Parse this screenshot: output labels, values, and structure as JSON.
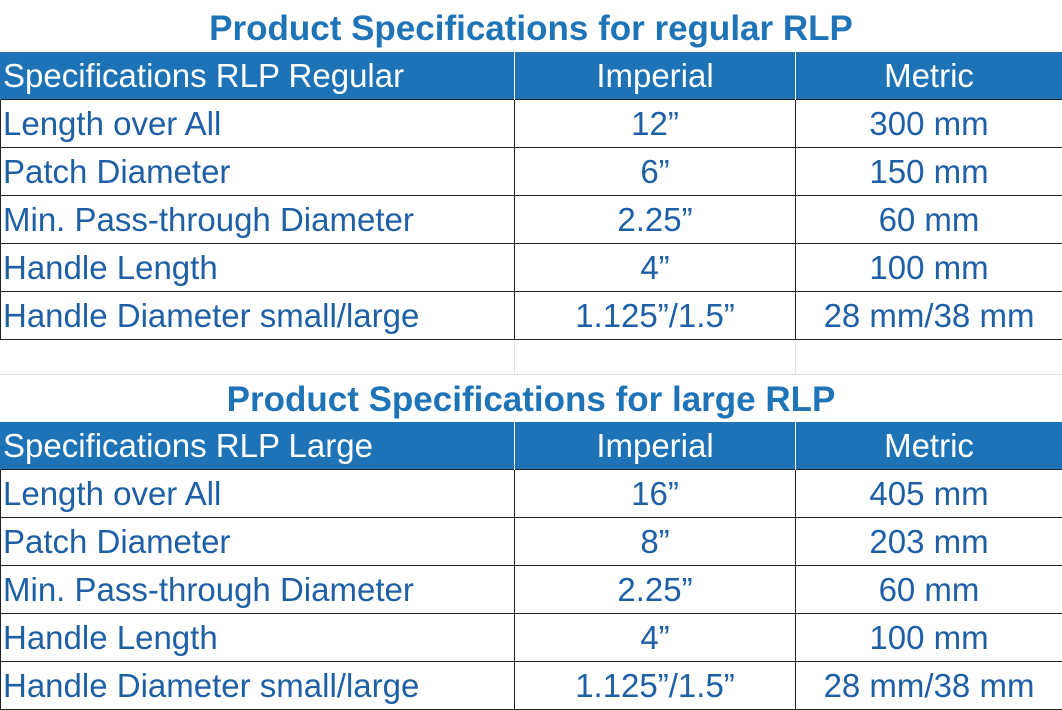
{
  "regular": {
    "title": "Product Specifications for regular RLP",
    "headers": [
      "Specifications RLP Regular",
      "Imperial",
      "Metric"
    ],
    "rows": [
      [
        "Length over All",
        "12”",
        "300 mm"
      ],
      [
        "Patch Diameter",
        "6”",
        "150 mm"
      ],
      [
        "Min. Pass-through Diameter",
        "2.25”",
        "60 mm"
      ],
      [
        "Handle Length",
        "4”",
        "100 mm"
      ],
      [
        "Handle Diameter small/large",
        "1.125”/1.5”",
        "28 mm/38 mm"
      ]
    ]
  },
  "large": {
    "title": "Product Specifications for large RLP",
    "headers": [
      "Specifications RLP Large",
      "Imperial",
      "Metric"
    ],
    "rows": [
      [
        "Length over All",
        "16”",
        "405 mm"
      ],
      [
        "Patch Diameter",
        "8”",
        "203 mm"
      ],
      [
        "Min. Pass-through Diameter",
        "2.25”",
        "60 mm"
      ],
      [
        "Handle Length",
        "4”",
        "100 mm"
      ],
      [
        "Handle Diameter small/large",
        "1.125”/1.5”",
        "28 mm/38 mm"
      ]
    ]
  },
  "colors": {
    "header_bg": "#1e73b6",
    "title_text": "#1f73b7",
    "cell_text": "#1f5fa6"
  }
}
